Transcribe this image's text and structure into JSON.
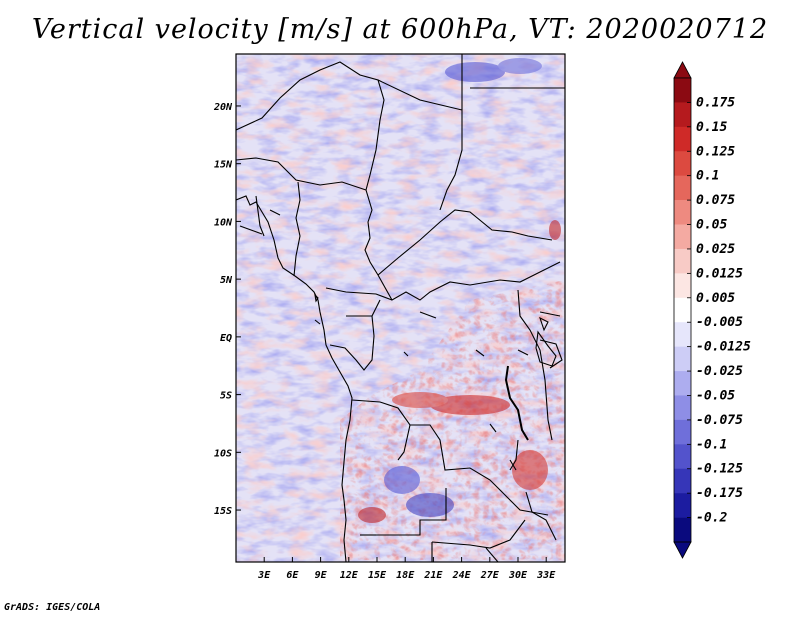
{
  "title": "Vertical velocity [m/s] at 600hPa, VT: 2020020712",
  "footer": "GrADS: IGES/COLA",
  "map": {
    "lat_labels": [
      "20N",
      "15N",
      "10N",
      "5N",
      "EQ",
      "5S",
      "10S",
      "15S"
    ],
    "lat_values": [
      20,
      15,
      10,
      5,
      0,
      -5,
      -10,
      -15
    ],
    "lon_labels": [
      "3E",
      "6E",
      "9E",
      "12E",
      "15E",
      "18E",
      "21E",
      "24E",
      "27E",
      "30E",
      "33E"
    ],
    "lon_values": [
      3,
      6,
      9,
      12,
      15,
      18,
      21,
      24,
      27,
      30,
      33
    ],
    "extent": {
      "lon_min": 0,
      "lon_max": 35,
      "lat_min": -19.5,
      "lat_max": 24.5
    }
  },
  "colorbar": {
    "labels": [
      "0.175",
      "0.15",
      "0.125",
      "0.1",
      "0.075",
      "0.05",
      "0.025",
      "0.0125",
      "0.005",
      "-0.005",
      "-0.0125",
      "-0.025",
      "-0.05",
      "-0.075",
      "-0.1",
      "-0.125",
      "-0.175",
      "-0.2"
    ],
    "colors": [
      "#8b0a12",
      "#b51a1e",
      "#cf2a28",
      "#dc4a40",
      "#e5675c",
      "#ee8a80",
      "#f4aaa2",
      "#f8cbc6",
      "#fce6e3",
      "#ffffff",
      "#e6e6fb",
      "#cdcdf6",
      "#adadef",
      "#8e8ee6",
      "#6f6fda",
      "#5353cc",
      "#3636b8",
      "#1c1ca0",
      "#0a0a7e"
    ]
  }
}
